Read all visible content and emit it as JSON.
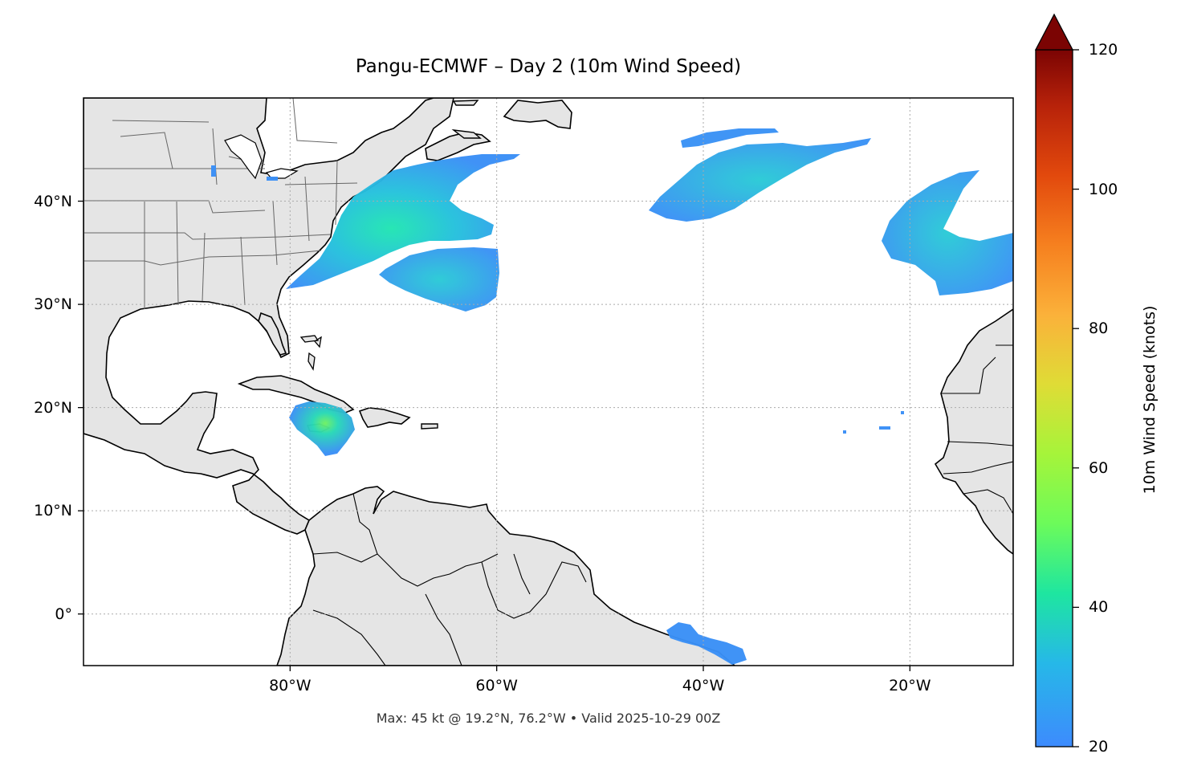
{
  "title": "Pangu-ECMWF – Day 2 (10m Wind Speed)",
  "footer": "Max: 45 kt @ 19.2°N, 76.2°W • Valid 2025-10-29 00Z",
  "map": {
    "projection": "PlateCarree",
    "lon_range": [
      -100,
      -10
    ],
    "lat_range": [
      -5,
      50
    ],
    "gridlines": true,
    "land_color": "#e5e5e5",
    "ocean_color": "#ffffff",
    "x_ticks": [
      {
        "lon": -80,
        "label": "80°W"
      },
      {
        "lon": -60,
        "label": "60°W"
      },
      {
        "lon": -40,
        "label": "40°W"
      },
      {
        "lon": -20,
        "label": "20°W"
      }
    ],
    "y_ticks": [
      {
        "lat": 40,
        "label": "40°N"
      },
      {
        "lat": 30,
        "label": "30°N"
      },
      {
        "lat": 20,
        "label": "20°N"
      },
      {
        "lat": 10,
        "label": "10°N"
      },
      {
        "lat": 0,
        "label": "0°"
      }
    ],
    "wind_regions": [
      {
        "name": "US East Coast / Western Atlantic",
        "max_kt": 38
      },
      {
        "name": "Subtropical Atlantic near 33°N 65°W",
        "max_kt": 26
      },
      {
        "name": "Central North Atlantic",
        "max_kt": 30
      },
      {
        "name": "Northeast Atlantic near Azores",
        "max_kt": 28
      },
      {
        "name": "Caribbean near Jamaica",
        "max_kt": 45
      },
      {
        "name": "Equatorial Atlantic",
        "max_kt": 22
      }
    ]
  },
  "colorbar": {
    "label": "10m Wind Speed (knots)",
    "min": 20,
    "max": 120,
    "extend": "max",
    "cmap": "turbo",
    "ticks": [
      "20",
      "40",
      "60",
      "80",
      "100",
      "120"
    ],
    "tick_values": [
      20,
      40,
      60,
      80,
      100,
      120
    ]
  }
}
